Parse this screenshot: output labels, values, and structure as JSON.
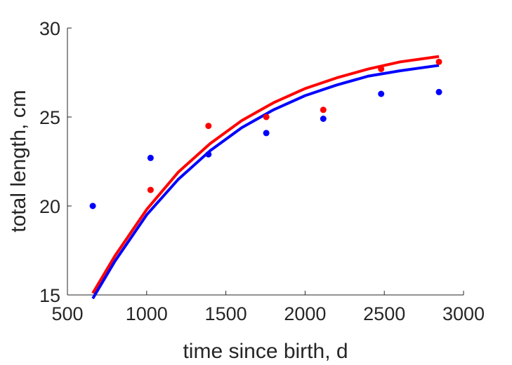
{
  "chart_data": {
    "type": "scatter",
    "title": "",
    "xlabel": "time since birth, d",
    "ylabel": "total length, cm",
    "xlim": [
      500,
      3000
    ],
    "ylim": [
      15,
      30
    ],
    "xticks": [
      500,
      1000,
      1500,
      2000,
      2500,
      3000
    ],
    "yticks": [
      15,
      20,
      25,
      30
    ],
    "grid": false,
    "legend": "none",
    "points": [
      {
        "color": "#0000ff",
        "x": [
          660,
          1025,
          1390,
          1755,
          2115,
          2480,
          2845
        ],
        "y": [
          20.0,
          22.7,
          22.9,
          24.1,
          24.9,
          26.3,
          26.4
        ]
      },
      {
        "color": "#ff0000",
        "x": [
          1025,
          1390,
          1755,
          2115,
          2480,
          2845
        ],
        "y": [
          20.9,
          24.5,
          25.0,
          25.4,
          27.7,
          28.1
        ]
      }
    ],
    "curves": [
      {
        "color": "#ff0000",
        "x": [
          660,
          800,
          1000,
          1200,
          1400,
          1600,
          1800,
          2000,
          2200,
          2400,
          2600,
          2845
        ],
        "y": [
          15.1,
          17.2,
          19.8,
          21.9,
          23.5,
          24.8,
          25.8,
          26.6,
          27.2,
          27.7,
          28.1,
          28.4
        ]
      },
      {
        "color": "#0000ff",
        "x": [
          660,
          800,
          1000,
          1200,
          1400,
          1600,
          1800,
          2000,
          2200,
          2400,
          2600,
          2845
        ],
        "y": [
          14.8,
          16.9,
          19.5,
          21.5,
          23.1,
          24.4,
          25.4,
          26.2,
          26.8,
          27.3,
          27.6,
          27.9
        ]
      }
    ]
  }
}
